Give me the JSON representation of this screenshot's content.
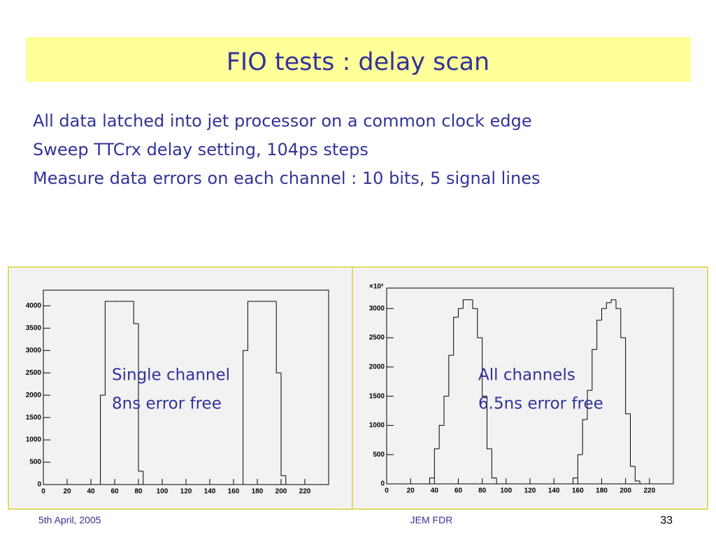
{
  "title": "FIO tests : delay scan",
  "bullets": [
    "All data latched into jet processor on a common clock edge",
    "Sweep TTCrx delay setting, 104ps steps",
    "Measure data errors on each channel : 10 bits, 5 signal lines"
  ],
  "chart_data": [
    {
      "type": "histogram",
      "color": "#000000",
      "bins": [
        0,
        4,
        8,
        12,
        16,
        20,
        24,
        28,
        32,
        36,
        40,
        44,
        48,
        52,
        56,
        60,
        64,
        68,
        72,
        76,
        80,
        84,
        88,
        92,
        96,
        100,
        104,
        108,
        112,
        116,
        120,
        124,
        128,
        132,
        136,
        140,
        144,
        148,
        152,
        156,
        160,
        164,
        168,
        172,
        176,
        180,
        184,
        188,
        192,
        196,
        200,
        204,
        208,
        212,
        216,
        220,
        224,
        228,
        232,
        236,
        240
      ],
      "values": [
        0,
        0,
        0,
        0,
        0,
        0,
        0,
        0,
        0,
        0,
        0,
        0,
        2000,
        4100,
        4100,
        4100,
        4100,
        4100,
        4100,
        3600,
        300,
        0,
        0,
        0,
        0,
        0,
        0,
        0,
        0,
        0,
        0,
        0,
        0,
        0,
        0,
        0,
        0,
        0,
        0,
        0,
        0,
        0,
        3000,
        4100,
        4100,
        4100,
        4100,
        4100,
        4100,
        2500,
        200,
        0,
        0,
        0,
        0,
        0,
        0,
        0,
        0,
        0
      ],
      "xlim": [
        0,
        240
      ],
      "ylim": [
        0,
        4350
      ],
      "xticks": [
        0,
        20,
        40,
        60,
        80,
        100,
        120,
        140,
        160,
        180,
        200,
        220
      ],
      "yticks": [
        0,
        500,
        1000,
        1500,
        2000,
        2500,
        3000,
        3500,
        4000
      ],
      "annotations": [
        "Single channel",
        "8ns error free"
      ]
    },
    {
      "type": "histogram",
      "color": "#000000",
      "bins": [
        0,
        4,
        8,
        12,
        16,
        20,
        24,
        28,
        32,
        36,
        40,
        44,
        48,
        52,
        56,
        60,
        64,
        68,
        72,
        76,
        80,
        84,
        88,
        92,
        96,
        100,
        104,
        108,
        112,
        116,
        120,
        124,
        128,
        132,
        136,
        140,
        144,
        148,
        152,
        156,
        160,
        164,
        168,
        172,
        176,
        180,
        184,
        188,
        192,
        196,
        200,
        204,
        208,
        212,
        216,
        220,
        224,
        228,
        232,
        236,
        240
      ],
      "values": [
        0,
        0,
        0,
        0,
        0,
        0,
        0,
        0,
        0,
        100,
        600,
        1000,
        1500,
        2200,
        2850,
        3000,
        3150,
        3150,
        3000,
        2500,
        1500,
        600,
        100,
        0,
        0,
        0,
        0,
        0,
        0,
        0,
        0,
        0,
        0,
        0,
        0,
        0,
        0,
        0,
        0,
        100,
        500,
        1100,
        1600,
        2300,
        2800,
        3000,
        3100,
        3150,
        3000,
        2500,
        1200,
        300,
        50,
        0,
        0,
        0,
        0,
        0,
        0,
        0
      ],
      "xlim": [
        0,
        240
      ],
      "ylim": [
        0,
        3350
      ],
      "xticks": [
        0,
        20,
        40,
        60,
        80,
        100,
        120,
        140,
        160,
        180,
        200,
        220
      ],
      "yticks": [
        0,
        500,
        1000,
        1500,
        2000,
        2500,
        3000
      ],
      "y_multiplier": "×10²",
      "annotations": [
        "All channels",
        "6.5ns error free"
      ]
    }
  ],
  "footer": {
    "date": "5th April, 2005",
    "center": "JEM FDR",
    "page": "33"
  }
}
